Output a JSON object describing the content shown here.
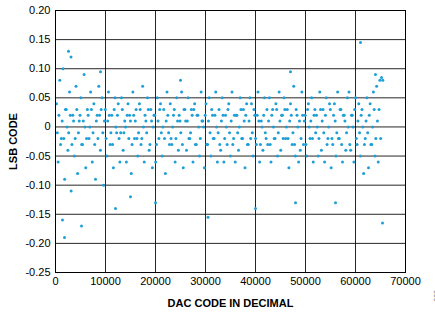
{
  "chart_data": {
    "type": "scatter",
    "x_label": "DAC CODE IN DECIMAL",
    "y_label": "LSB CODE",
    "annotations": [
      "006"
    ],
    "color": "#1e9fd6",
    "marker": "circle",
    "grid": true,
    "xlim": [
      0,
      70000
    ],
    "xticks": [
      0,
      10000,
      20000,
      30000,
      40000,
      50000,
      60000,
      70000
    ],
    "ylim": [
      -0.25,
      0.2
    ],
    "yticks": [
      {
        "value": -0.25,
        "label": "-0.25"
      },
      {
        "value": -0.2,
        "label": "-0.20"
      },
      -0.15,
      {
        "value": -0.1,
        "label": "-0.10"
      },
      -0.05,
      0,
      0.05,
      {
        "value": 0.1,
        "label": "0.10"
      },
      0.15,
      {
        "value": 0.2,
        "label": "0.20"
      }
    ],
    "x": [
      200,
      525,
      850,
      1175,
      1500,
      1825,
      2150,
      2475,
      2800,
      3125,
      3450,
      3775,
      4100,
      4425,
      4750,
      5075,
      5400,
      5725,
      6050,
      6375,
      6700,
      7025,
      7350,
      7675,
      8000,
      8325,
      8650,
      8975,
      9300,
      9625,
      9950,
      10275,
      10600,
      10925,
      11250,
      11575,
      11900,
      12225,
      12550,
      12875,
      13200,
      13525,
      13850,
      14175,
      14500,
      14825,
      15150,
      15475,
      15800,
      16125,
      16450,
      16775,
      17100,
      17425,
      17750,
      18075,
      18400,
      18725,
      19050,
      19375,
      19700,
      20025,
      20350,
      20675,
      21000,
      21325,
      21650,
      21975,
      22300,
      22625,
      22950,
      23275,
      23600,
      23925,
      24250,
      24575,
      24900,
      25225,
      25550,
      25875,
      26200,
      26525,
      26850,
      27175,
      27500,
      27825,
      28150,
      28475,
      28800,
      29125,
      29450,
      29775,
      30100,
      30425,
      30750,
      31075,
      31400,
      31725,
      32050,
      32375,
      32700,
      33025,
      33350,
      33675,
      34000,
      34325,
      34650,
      34975,
      35300,
      35625,
      35950,
      36275,
      36600,
      36925,
      37250,
      37575,
      37900,
      38225,
      38550,
      38875,
      39200,
      39525,
      39850,
      40175,
      40500,
      40825,
      41150,
      41475,
      41800,
      42125,
      42450,
      42775,
      43100,
      43425,
      43750,
      44075,
      44400,
      44725,
      45050,
      45375,
      45700,
      46025,
      46350,
      46675,
      47000,
      47325,
      47650,
      47975,
      48300,
      48625,
      48950,
      49275,
      49600,
      49925,
      50250,
      50575,
      50900,
      51225,
      51550,
      51875,
      52200,
      52525,
      52850,
      53175,
      53500,
      53825,
      54150,
      54475,
      54800,
      55125,
      55450,
      55775,
      56100,
      56425,
      56750,
      57075,
      57400,
      57725,
      58050,
      58375,
      58700,
      59025,
      59350,
      59675,
      60000,
      60325,
      60650,
      60975,
      61300,
      61625,
      61950,
      62275,
      62600,
      62925,
      63250,
      63575,
      63900,
      64225,
      64550,
      64875,
      360,
      685,
      1010,
      1335,
      1660,
      1985,
      2310,
      2635,
      2960,
      3285,
      3610,
      3935,
      4260,
      4585,
      4910,
      5235,
      5560,
      5885,
      6210,
      6535,
      6860,
      7185,
      7510,
      7835,
      8160,
      8485,
      8810,
      9135,
      9460,
      9785,
      10110,
      10435,
      10760,
      11085,
      11410,
      11735,
      12060,
      12385,
      12710,
      13035,
      13360,
      13685,
      14010,
      14335,
      14660,
      14985,
      15310,
      15635,
      15960,
      16285,
      16610,
      16935,
      17260,
      17585,
      17910,
      18235,
      18560,
      18885,
      19210,
      19535,
      19860,
      20185,
      20510,
      20835,
      21160,
      21485,
      21810,
      22135,
      22460,
      22785,
      23110,
      23435,
      23760,
      24085,
      24410,
      24735,
      25060,
      25385,
      25710,
      26035,
      26360,
      26685,
      27010,
      27335,
      27660,
      27985,
      28310,
      28635,
      28960,
      29285,
      29610,
      29935,
      30260,
      30585,
      30910,
      31235,
      31560,
      31885,
      32210,
      32535,
      32860,
      33185,
      33510,
      33835,
      34160,
      34485,
      34810,
      35135,
      35460,
      35785,
      36110,
      36435,
      36760,
      37085,
      37410,
      37735,
      38060,
      38385,
      38710,
      39035,
      39360,
      39685,
      40010,
      40335,
      40660,
      40985,
      41310,
      41635,
      41960,
      42285,
      42610,
      42935,
      43260,
      43585,
      43910,
      44235,
      44560,
      44885,
      45210,
      45535,
      45860,
      46185,
      46510,
      46835,
      47160,
      47485,
      47810,
      48135,
      48460,
      48785,
      49110,
      49435,
      49760,
      50085,
      50410,
      50735,
      51060,
      51385,
      51710,
      52035,
      52360,
      52685,
      53010,
      53335,
      53660,
      53985,
      54310,
      54635,
      54960,
      55285,
      55610,
      55935,
      56260,
      56585,
      56910,
      57235,
      57560,
      57885,
      58210,
      58535,
      58860,
      59185,
      59510,
      59835,
      60160,
      60485,
      60810,
      61135,
      61460,
      61785,
      62110,
      62435,
      62760,
      63085,
      63410,
      63735,
      64060,
      64385,
      64710,
      65035,
      1800,
      2600,
      3100,
      5200,
      61000,
      65200,
      65400,
      65450,
      1400,
      30500,
      9000,
      12000,
      47000,
      48000,
      20000,
      40000,
      56000,
      25000,
      64000,
      15000
    ],
    "values": [
      0.04,
      -0.06,
      0.08,
      -0.02,
      0.1,
      -0.09,
      0.03,
      -0.04,
      0.06,
      -0.11,
      0.02,
      -0.05,
      0.07,
      -0.08,
      0.01,
      0.05,
      -0.03,
      0.09,
      -0.07,
      0.03,
      -0.02,
      0.06,
      -0.06,
      0.04,
      -0.09,
      0.02,
      0.07,
      -0.04,
      0.05,
      -0.1,
      0.03,
      -0.05,
      0.06,
      -0.03,
      0.02,
      -0.07,
      0.05,
      -0.01,
      0.04,
      -0.06,
      0.05,
      -0.04,
      0.01,
      -0.06,
      0.04,
      0.02,
      -0.08,
      0.06,
      -0.02,
      0.03,
      -0.05,
      0.04,
      -0.03,
      0.07,
      -0.06,
      0.01,
      0.05,
      -0.04,
      0.03,
      -0.07,
      0.02,
      -0.06,
      0.05,
      -0.02,
      0.04,
      -0.05,
      0.03,
      -0.08,
      0.06,
      -0.01,
      0.04,
      -0.03,
      0.02,
      -0.06,
      0.05,
      -0.04,
      0.01,
      0.06,
      -0.07,
      0.03,
      -0.04,
      0.05,
      -0.02,
      0.03,
      -0.06,
      0.04,
      -0.03,
      0.02,
      -0.05,
      0.06,
      0.01,
      -0.07,
      0.04,
      -0.03,
      0.05,
      -0.05,
      0.02,
      -0.02,
      0.06,
      -0.06,
      0.03,
      -0.04,
      0.05,
      -0.06,
      0.02,
      -0.03,
      0.04,
      -0.05,
      0.06,
      -0.02,
      -0.06,
      0.02,
      -0.04,
      0.05,
      -0.02,
      0.03,
      -0.07,
      0.04,
      -0.03,
      0.05,
      0.04,
      -0.05,
      0.02,
      -0.03,
      0.06,
      -0.06,
      0.01,
      -0.04,
      0.05,
      -0.02,
      -0.03,
      0.05,
      -0.06,
      0.03,
      -0.02,
      0.04,
      -0.05,
      0.06,
      -0.04,
      0.02,
      0.05,
      -0.02,
      0.03,
      -0.07,
      0.04,
      -0.03,
      0.07,
      -0.05,
      0.02,
      -0.06,
      -0.04,
      0.06,
      -0.03,
      0.02,
      -0.05,
      0.04,
      -0.02,
      0.05,
      -0.06,
      0.03,
      0.02,
      -0.05,
      0.06,
      -0.04,
      0.03,
      -0.06,
      0.05,
      -0.02,
      0.04,
      -0.07,
      -0.03,
      0.04,
      -0.05,
      0.06,
      -0.02,
      0.03,
      -0.06,
      0.02,
      -0.04,
      0.05,
      0.06,
      -0.04,
      0.02,
      -0.06,
      0.05,
      -0.03,
      0.04,
      -0.05,
      0.03,
      -0.08,
      -0.02,
      0.05,
      -0.07,
      0.04,
      -0.03,
      0.06,
      -0.05,
      0.07,
      -0.06,
      0.08,
      -0.01,
      0.02,
      -0.03,
      0.01,
      -0.02,
      0.03,
      0,
      -0.01,
      0.02,
      -0.03,
      0.01,
      -0.02,
      0.03,
      -0.01,
      0.02,
      -0.03,
      0.01,
      0,
      -0.02,
      0.02,
      0,
      0.03,
      -0.01,
      -0.03,
      0.01,
      -0.02,
      0.02,
      0.03,
      -0.01,
      0.01,
      -0.02,
      0.01,
      0.02,
      -0.01,
      -0.03,
      0.03,
      0,
      0.02,
      -0.02,
      -0.01,
      0.03,
      -0.01,
      0,
      0.02,
      -0.02,
      0.01,
      -0.03,
      0.02,
      0.01,
      -0.02,
      -0.01,
      0.03,
      -0.02,
      0,
      0.02,
      -0.01,
      0.03,
      -0.03,
      0.01,
      0,
      0.02,
      -0.03,
      0.01,
      0.03,
      -0.01,
      0,
      -0.02,
      0.01,
      0.02,
      -0.03,
      -0.02,
      0,
      0.03,
      -0.02,
      0.01,
      0.02,
      -0.01,
      -0.03,
      0.03,
      0.01,
      0.01,
      -0.02,
      -0.01,
      0.02,
      0.03,
      -0.03,
      0.02,
      0,
      -0.02,
      0.01,
      0,
      0.02,
      -0.03,
      0.01,
      -0.01,
      0.03,
      -0.02,
      0.02,
      0,
      -0.01,
      -0.03,
      0.01,
      0.02,
      -0.02,
      0,
      0.03,
      -0.01,
      0.01,
      -0.03,
      0.02,
      0.02,
      -0.01,
      0,
      0.03,
      -0.02,
      0.01,
      0.02,
      -0.03,
      0.01,
      -0.02,
      -0.01,
      0.03,
      -0.02,
      0.02,
      0.01,
      -0.03,
      0,
      0.02,
      -0.01,
      0.03,
      0.01,
      -0.03,
      0.02,
      0,
      -0.02,
      0.03,
      -0.01,
      0.01,
      0.02,
      -0.02,
      0.03,
      0,
      -0.02,
      0.01,
      0.02,
      -0.01,
      -0.03,
      0.03,
      0,
      0.01,
      -0.02,
      0.02,
      0.01,
      -0.03,
      0.03,
      0,
      0.01,
      -0.02,
      0.02,
      -0.01,
      0,
      -0.02,
      0.03,
      0.01,
      -0.01,
      0.02,
      -0.03,
      0,
      0.03,
      -0.02,
      0.02,
      0.01,
      -0.01,
      -0.02,
      0.03,
      -0.03,
      0.02,
      0.01,
      -0.01,
      0,
      -0.03,
      0.02,
      0,
      0.03,
      -0.02,
      0.01,
      -0.01,
      0.02,
      0,
      -0.03,
      0.01,
      -0.01,
      0.02,
      -0.03,
      0,
      0.03,
      -0.02,
      0.01,
      0.03,
      -0.02,
      -0.19,
      0.13,
      0.12,
      -0.17,
      0.145,
      0.085,
      -0.165,
      0.08,
      -0.16,
      -0.155,
      0.095,
      -0.14,
      0.095,
      -0.13,
      -0.13,
      -0.14,
      -0.13,
      0.08,
      0.09,
      -0.12
    ]
  }
}
